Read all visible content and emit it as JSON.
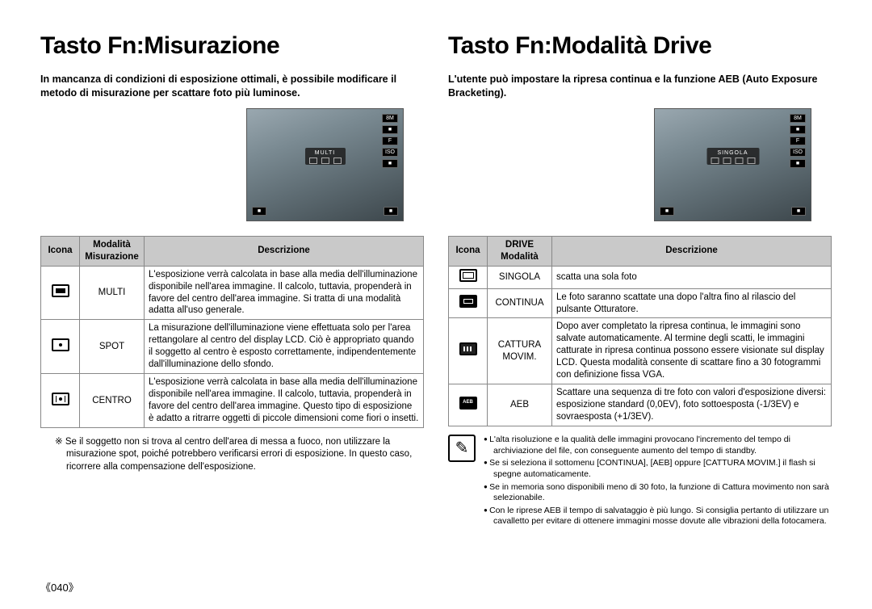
{
  "page_number": "《040》",
  "left": {
    "title": "Tasto Fn:Misurazione",
    "intro": "In mancanza di condizioni di esposizione ottimali, è possibile modificare il metodo di misurazione per scattare foto più luminose.",
    "osd_label": "MULTI",
    "osd_badges": [
      "8M",
      "■",
      "F",
      "ISO",
      "■"
    ],
    "table": {
      "headers": [
        "Icona",
        "Modalità Misurazione",
        "Descrizione"
      ],
      "rows": [
        {
          "icon": "filled",
          "mode": "MULTI",
          "desc": "L'esposizione verrà calcolata in base alla media dell'illuminazione disponibile nell'area immagine. Il calcolo, tuttavia, propenderà in favore del centro dell'area immagine. Si tratta di una modalità adatta all'uso generale."
        },
        {
          "icon": "dot",
          "mode": "SPOT",
          "desc": "La misurazione dell'illuminazione viene effettuata solo per l'area rettangolare al centro del display LCD. Ciò è appropriato quando il soggetto al centro è esposto correttamente, indipendentemente dall'illuminazione dello sfondo."
        },
        {
          "icon": "center",
          "mode": "CENTRO",
          "desc": "L'esposizione verrà calcolata in base alla media dell'illuminazione disponibile nell'area immagine. Il calcolo, tuttavia, propenderà in favore del centro dell'area immagine. Questo tipo di esposizione è adatto a ritrarre oggetti di piccole dimensioni come fiori o insetti."
        }
      ]
    },
    "footnote": "※ Se il soggetto non si trova al centro dell'area di messa a fuoco, non utilizzare la misurazione spot, poiché potrebbero verificarsi errori di esposizione. In questo caso, ricorrere alla compensazione dell'esposizione."
  },
  "right": {
    "title": "Tasto Fn:Modalità Drive",
    "intro": "L'utente può impostare la ripresa continua e la funzione AEB (Auto Exposure Bracketing).",
    "osd_label": "SINGOLA",
    "osd_badges": [
      "8M",
      "■",
      "F",
      "ISO",
      "■"
    ],
    "table": {
      "headers": [
        "Icona",
        "DRIVE Modalità",
        "Descrizione"
      ],
      "rows": [
        {
          "icon": "single",
          "mode": "SINGOLA",
          "desc": "scatta una sola foto"
        },
        {
          "icon": "continuous",
          "mode": "CONTINUA",
          "desc": "Le foto saranno scattate una dopo l'altra fino al rilascio del pulsante Otturatore."
        },
        {
          "icon": "motion",
          "mode": "CATTURA MOVIM.",
          "desc": "Dopo aver completato la ripresa continua, le immagini sono salvate automaticamente. Al termine degli scatti, le immagini catturate in ripresa continua possono essere visionate sul display LCD. Questa modalità consente di scattare fino a 30 fotogrammi con definizione fissa VGA."
        },
        {
          "icon": "aeb",
          "mode": "AEB",
          "desc": "Scattare una sequenza di tre foto con valori d'esposizione diversi: esposizione standard (0,0EV), foto sottoesposta (-1/3EV) e sovraesposta (+1/3EV)."
        }
      ]
    },
    "notes": [
      "L'alta risoluzione e la qualità delle immagini provocano l'incremento del tempo di archiviazione del file, con conseguente aumento del tempo di standby.",
      "Se si seleziona il sottomenu [CONTINUA], [AEB] oppure [CATTURA MOVIM.] il flash si spegne automaticamente.",
      "Se in memoria sono disponibili meno di 30 foto, la funzione di Cattura movimento non sarà selezionabile.",
      "Con le riprese AEB il tempo di salvataggio è più lungo. Si consiglia pertanto di utilizzare un cavalletto per evitare di ottenere immagini mosse dovute alle vibrazioni della fotocamera."
    ]
  }
}
